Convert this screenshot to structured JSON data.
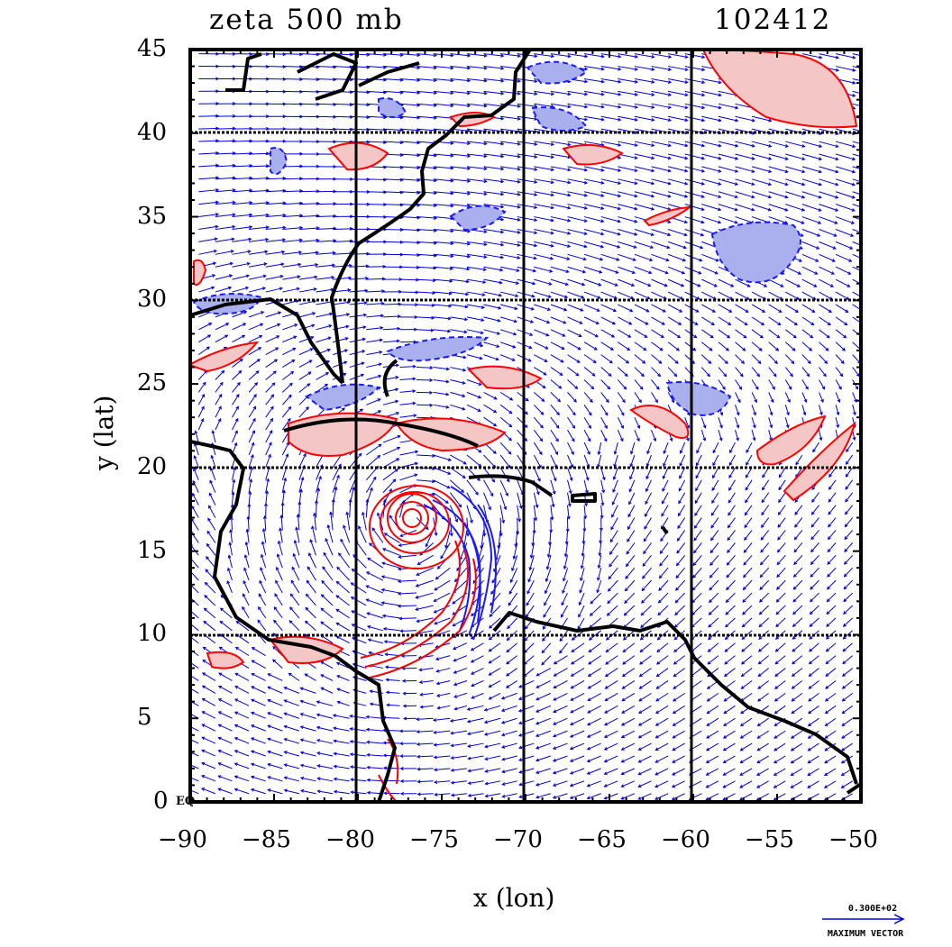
{
  "header": {
    "title_left": "zeta 500 mb",
    "title_right": "102412"
  },
  "axes": {
    "xlabel": "x (lon)",
    "ylabel": "y (lat)",
    "x_ticks": [
      "−90",
      "−85",
      "−80",
      "−75",
      "−70",
      "−65",
      "−60",
      "−55",
      "−50"
    ],
    "y_ticks": [
      "45",
      "40",
      "35",
      "30",
      "25",
      "20",
      "15",
      "10",
      "5",
      "0"
    ],
    "equator_tag": "EQ",
    "xlim": [
      -90,
      -50
    ],
    "ylim": [
      0,
      45
    ],
    "x_tick_values": [
      -90,
      -85,
      -80,
      -75,
      -70,
      -65,
      -60,
      -55,
      -50
    ],
    "y_tick_values": [
      45,
      40,
      35,
      30,
      25,
      20,
      15,
      10,
      5,
      0
    ],
    "grid_lon": [
      -80,
      -70,
      -60
    ],
    "grid_lat": [
      10,
      20,
      30,
      40
    ]
  },
  "legend": {
    "vector_value": "0.300E+02",
    "vector_caption": "MAXIMUM VECTOR"
  },
  "colors": {
    "positive_vorticity": "#ff0000",
    "positive_fill": "#f5c6c6",
    "negative_vorticity": "#1a1aff",
    "negative_fill": "#aab0ee",
    "wind_vectors": "#0000dd",
    "coastline": "#000000"
  },
  "storm_center": {
    "lon": -76.7,
    "lat": 16.8
  }
}
